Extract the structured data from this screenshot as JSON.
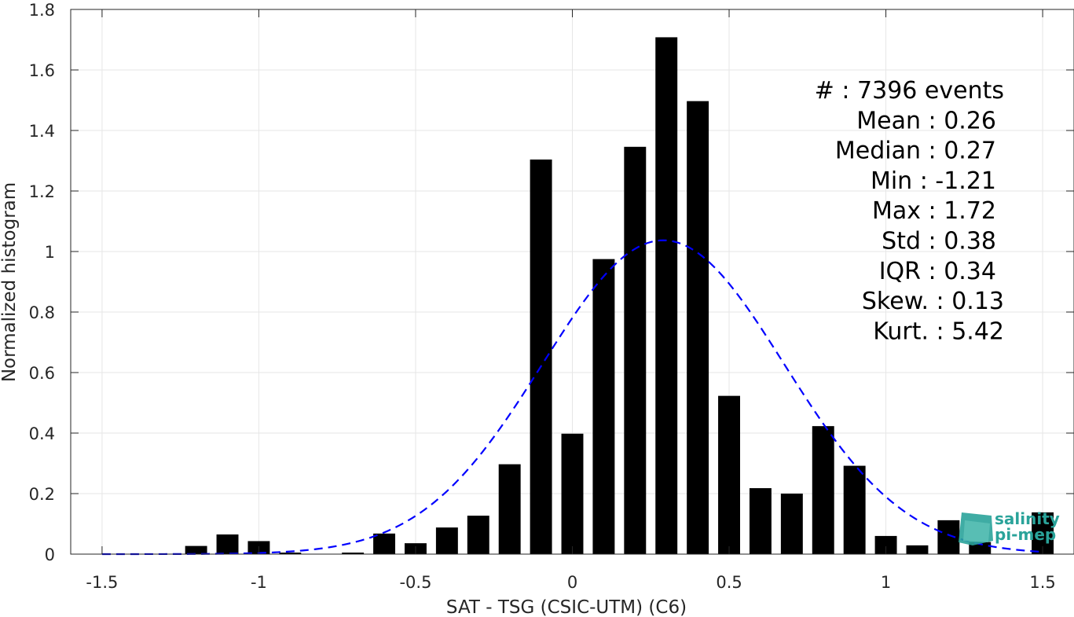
{
  "chart_data": {
    "type": "bar",
    "xlabel": "SAT - TSG (CSIC-UTM) (C6)",
    "ylabel": "Normalized histogram",
    "xlim": [
      -1.6,
      1.6
    ],
    "ylim": [
      0,
      1.8
    ],
    "xticks": [
      "-1.5",
      "-1",
      "-0.5",
      "0",
      "0.5",
      "1",
      "1.5"
    ],
    "xtick_values": [
      -1.5,
      -1,
      -0.5,
      0,
      0.5,
      1,
      1.5
    ],
    "yticks": [
      "0",
      "0.2",
      "0.4",
      "0.6",
      "0.8",
      "1",
      "1.2",
      "1.4",
      "1.6",
      "1.8"
    ],
    "ytick_values": [
      0,
      0.2,
      0.4,
      0.6,
      0.8,
      1,
      1.2,
      1.4,
      1.6,
      1.8
    ],
    "grid": true,
    "bar_width": 0.07,
    "bar_color": "#000000",
    "bins": [
      -1.2,
      -1.1,
      -1.0,
      -0.9,
      -0.8,
      -0.7,
      -0.6,
      -0.5,
      -0.4,
      -0.3,
      -0.2,
      -0.1,
      0.0,
      0.1,
      0.2,
      0.3,
      0.4,
      0.5,
      0.6,
      0.7,
      0.8,
      0.9,
      1.0,
      1.1,
      1.2,
      1.3,
      1.4,
      1.5
    ],
    "values": [
      0.027,
      0.065,
      0.043,
      0.005,
      0.0,
      0.005,
      0.068,
      0.036,
      0.088,
      0.127,
      0.297,
      1.304,
      0.398,
      0.975,
      1.346,
      1.708,
      1.497,
      0.523,
      0.218,
      0.2,
      0.423,
      0.292,
      0.06,
      0.029,
      0.112,
      0.04,
      0.0,
      0.138
    ],
    "fit": {
      "type": "normal",
      "mean": 0.29,
      "std": 0.385,
      "peak": 1.037,
      "color": "#0000ff",
      "style": "dashed"
    },
    "stats": [
      "#  : 7396 events",
      "Mean : 0.26",
      "Median : 0.27",
      "Min : -1.21",
      "Max : 1.72",
      "Std : 0.38",
      "IQR : 0.34",
      "Skew. : 0.13",
      "Kurt. : 5.42"
    ]
  },
  "logo": {
    "line1": "salinity",
    "line2": "pi-mep",
    "color": "#2aa39a"
  }
}
